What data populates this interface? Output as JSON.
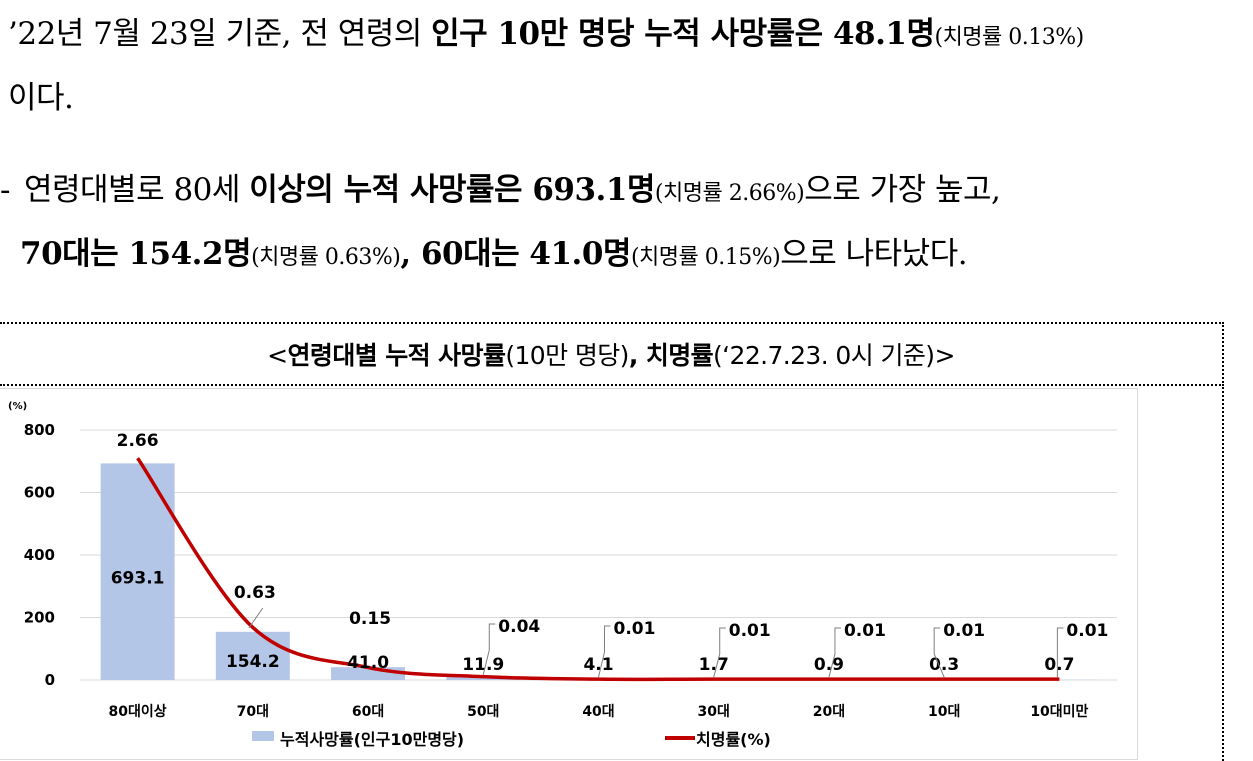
{
  "text": {
    "p1_a": "’22년 7월 23일 기준, 전 연령의 ",
    "p1_b": "인구 10만 명당 누적 사망률은 48.1명",
    "p1_c": "(치명률 0.13%)",
    "p1_d": "이다.",
    "p2_dash": "-",
    "p2_a": "연령대별로 80세 ",
    "p2_b": "이상의 누적 사망률은 693.1명",
    "p2_c": "(치명률 2.66%)",
    "p2_d": "으로 가장 높고,",
    "p2_e": "70대는 154.2명",
    "p2_f": "(치명률 0.63%)",
    "p2_g": ", 60대는 41.0명",
    "p2_h": "(치명률 0.15%)",
    "p2_i": "으로 나타났다."
  },
  "chart_title": {
    "open": "<",
    "bold1": "연령대별 누적 사망률",
    "normal1": "(10만 명당)",
    "bold2": ", 치명률",
    "normal2": "(‘22.7.23. 0시 기준)",
    "close": ">"
  },
  "chart_data": {
    "type": "bar",
    "categories": [
      "80대이상",
      "70대",
      "60대",
      "50대",
      "40대",
      "30대",
      "20대",
      "10대",
      "10대미만"
    ],
    "series": [
      {
        "name": "누적사망률(인구10만명당)",
        "kind": "bar",
        "values": [
          693.1,
          154.2,
          41.0,
          11.9,
          4.1,
          1.7,
          0.9,
          0.3,
          0.7
        ],
        "labels": [
          "693.1",
          "154.2",
          "41.0",
          "11.9",
          "4.1",
          "1.7",
          "0.9",
          "0.3",
          "0.7"
        ]
      },
      {
        "name": "치명률(%)",
        "kind": "line",
        "values": [
          2.66,
          0.63,
          0.15,
          0.04,
          0.01,
          0.01,
          0.01,
          0.01,
          0.01
        ],
        "labels": [
          "2.66",
          "0.63",
          "0.15",
          "0.04",
          "0.01",
          "0.01",
          "0.01",
          "0.01",
          "0.01"
        ]
      }
    ],
    "y_unit": "(%)",
    "yticks": [
      "0",
      "200",
      "400",
      "600",
      "800"
    ],
    "ylim": [
      0,
      800
    ],
    "grid": true,
    "legend_position": "bottom",
    "colors": {
      "bar": "#b4c6e7",
      "line": "#c00000",
      "grid": "#d9d9d9",
      "leader": "#7f7f7f"
    }
  }
}
